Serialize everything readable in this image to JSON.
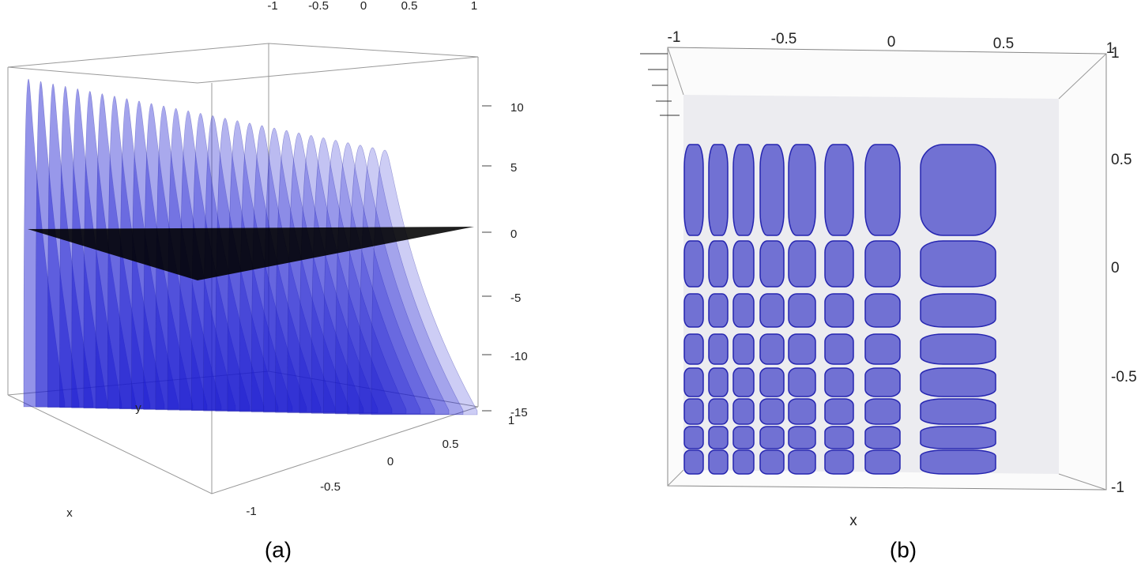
{
  "panel_a": {
    "top_ticks": [
      "-1",
      "-0.5",
      "0",
      "0.5",
      "1"
    ],
    "right_ticks": [
      "10",
      "5",
      "0",
      "-5",
      "-10",
      "-15"
    ],
    "bottom_ticks": [
      "-1",
      "-0.5",
      "0",
      "0.5",
      "1"
    ],
    "y_label": "y",
    "x_label": "x",
    "caption": "(a)"
  },
  "panel_b": {
    "top_ticks": [
      "-1",
      "-0.5",
      "0",
      "0.5",
      "1"
    ],
    "right_ticks": [
      "1",
      "0.5",
      "0",
      "-0.5",
      "-1"
    ],
    "x_label": "x",
    "caption": "(b)"
  }
}
